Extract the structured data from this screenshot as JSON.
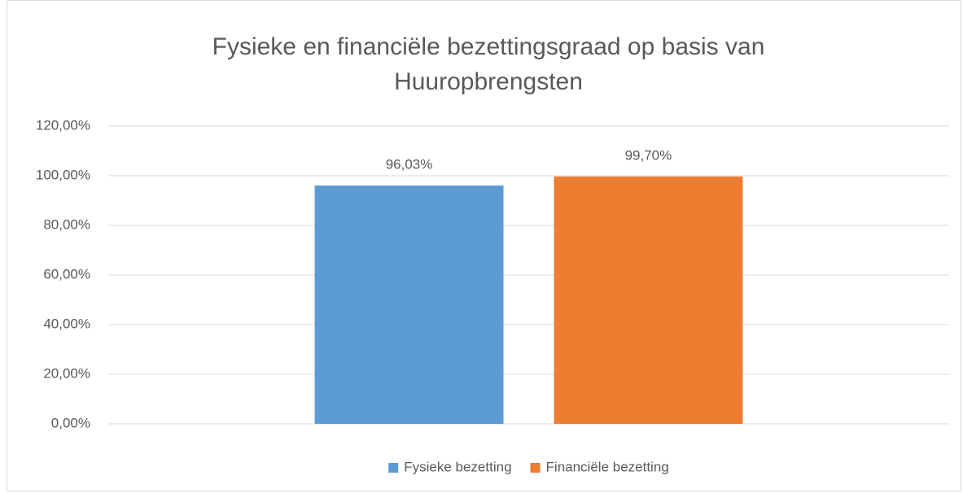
{
  "chart_data": {
    "type": "bar",
    "title": "Fysieke en financiële bezettingsgraad op basis van Huuropbrengsten",
    "categories": [
      null
    ],
    "series": [
      {
        "name": "Fysieke bezetting",
        "color": "#5b9bd5",
        "values": [
          96.03
        ],
        "value_labels": [
          "96,03%"
        ]
      },
      {
        "name": "Financiële bezetting",
        "color": "#ed7d31",
        "values": [
          99.7
        ],
        "value_labels": [
          "99,70%"
        ]
      }
    ],
    "ylim": [
      0,
      120
    ],
    "yticks": [
      {
        "value": 0,
        "label": "0,00%"
      },
      {
        "value": 20,
        "label": "20,00%"
      },
      {
        "value": 40,
        "label": "40,00%"
      },
      {
        "value": 60,
        "label": "60,00%"
      },
      {
        "value": 80,
        "label": "80,00%"
      },
      {
        "value": 100,
        "label": "100,00%"
      },
      {
        "value": 120,
        "label": "120,00%"
      }
    ],
    "grid": true,
    "legend": "bottom"
  }
}
